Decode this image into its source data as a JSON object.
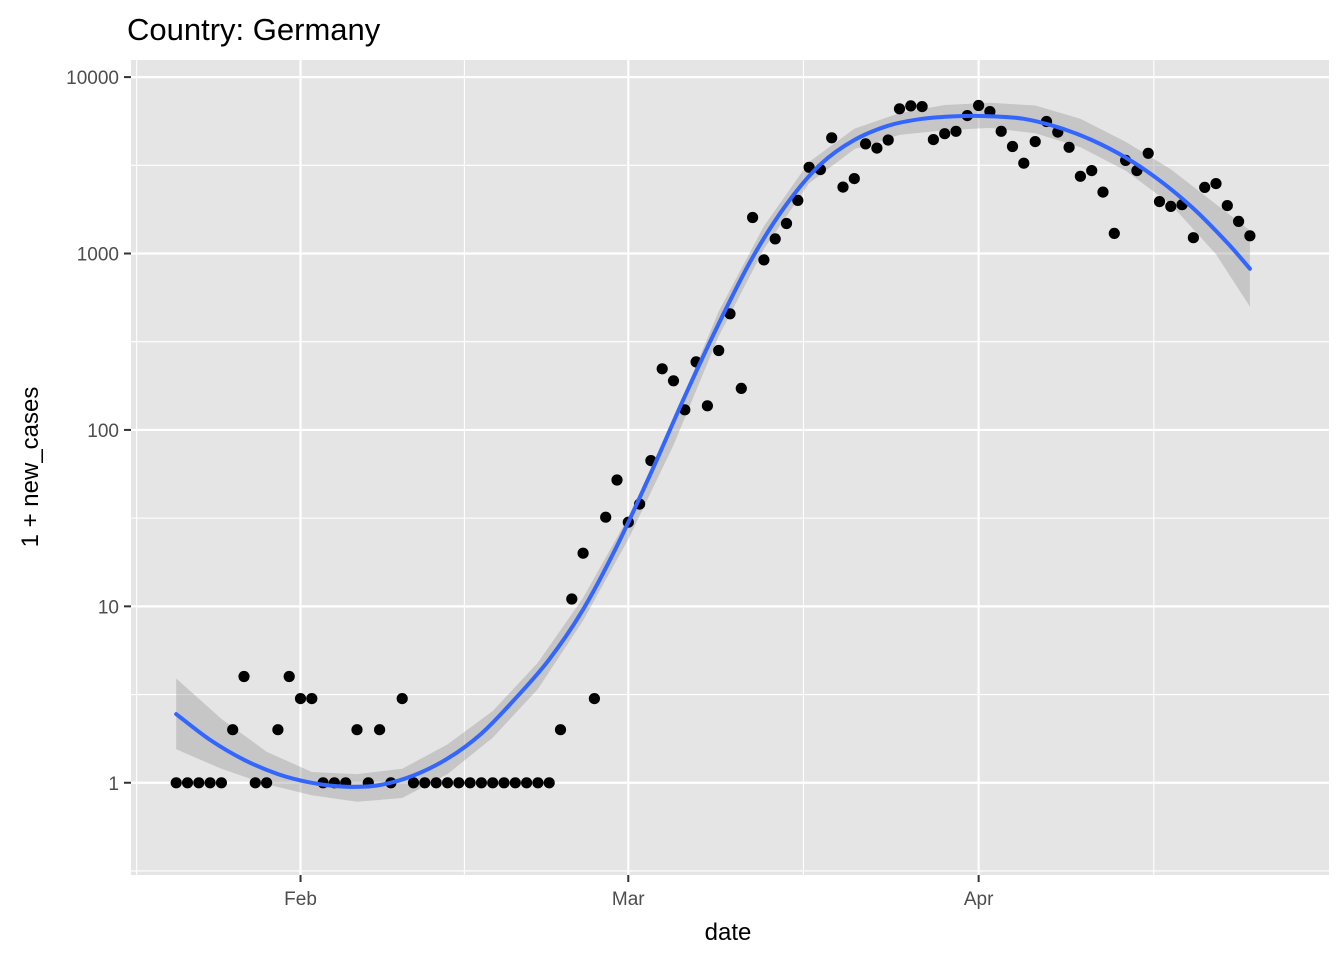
{
  "colors": {
    "panel": "#e5e5e5",
    "grid": "#ffffff",
    "points": "#000000",
    "trend": "#3366ff",
    "ribbon": "#999999"
  },
  "chart_data": {
    "type": "scatter",
    "title": "Country: Germany",
    "xlabel": "date",
    "ylabel": "1 + new_cases",
    "x_scale": "date",
    "y_scale": "log10",
    "xlim": [
      "2020-01-17",
      "2020-05-02"
    ],
    "ylim": [
      0.3,
      12500
    ],
    "x_ticks": [
      {
        "date": "2020-02-01",
        "label": "Feb"
      },
      {
        "date": "2020-03-01",
        "label": "Mar"
      },
      {
        "date": "2020-04-01",
        "label": "Apr"
      }
    ],
    "y_ticks": [
      {
        "value": 1,
        "label": "1"
      },
      {
        "value": 10,
        "label": "10"
      },
      {
        "value": 100,
        "label": "100"
      },
      {
        "value": 1000,
        "label": "1000"
      },
      {
        "value": 10000,
        "label": "10000"
      }
    ],
    "grid": true,
    "series": [
      {
        "kind": "points",
        "points": [
          [
            "2020-01-21",
            1
          ],
          [
            "2020-01-22",
            1
          ],
          [
            "2020-01-23",
            1
          ],
          [
            "2020-01-24",
            1
          ],
          [
            "2020-01-25",
            1
          ],
          [
            "2020-01-26",
            2
          ],
          [
            "2020-01-27",
            4
          ],
          [
            "2020-01-28",
            1
          ],
          [
            "2020-01-29",
            1
          ],
          [
            "2020-01-30",
            2
          ],
          [
            "2020-01-31",
            4
          ],
          [
            "2020-02-01",
            3
          ],
          [
            "2020-02-02",
            3
          ],
          [
            "2020-02-03",
            1
          ],
          [
            "2020-02-04",
            1
          ],
          [
            "2020-02-05",
            1
          ],
          [
            "2020-02-06",
            2
          ],
          [
            "2020-02-07",
            1
          ],
          [
            "2020-02-08",
            2
          ],
          [
            "2020-02-09",
            1
          ],
          [
            "2020-02-10",
            3
          ],
          [
            "2020-02-11",
            1
          ],
          [
            "2020-02-12",
            1
          ],
          [
            "2020-02-13",
            1
          ],
          [
            "2020-02-14",
            1
          ],
          [
            "2020-02-15",
            1
          ],
          [
            "2020-02-16",
            1
          ],
          [
            "2020-02-17",
            1
          ],
          [
            "2020-02-18",
            1
          ],
          [
            "2020-02-19",
            1
          ],
          [
            "2020-02-20",
            1
          ],
          [
            "2020-02-21",
            1
          ],
          [
            "2020-02-22",
            1
          ],
          [
            "2020-02-23",
            1
          ],
          [
            "2020-02-24",
            2
          ],
          [
            "2020-02-25",
            11
          ],
          [
            "2020-02-26",
            20
          ],
          [
            "2020-02-27",
            3
          ],
          [
            "2020-02-28",
            32
          ],
          [
            "2020-02-29",
            52
          ],
          [
            "2020-03-01",
            30
          ],
          [
            "2020-03-02",
            38
          ],
          [
            "2020-03-03",
            67
          ],
          [
            "2020-03-04",
            222
          ],
          [
            "2020-03-05",
            190
          ],
          [
            "2020-03-06",
            130
          ],
          [
            "2020-03-07",
            243
          ],
          [
            "2020-03-08",
            137
          ],
          [
            "2020-03-09",
            282
          ],
          [
            "2020-03-10",
            455
          ],
          [
            "2020-03-11",
            172
          ],
          [
            "2020-03-12",
            1600
          ],
          [
            "2020-03-13",
            920
          ],
          [
            "2020-03-14",
            1210
          ],
          [
            "2020-03-15",
            1480
          ],
          [
            "2020-03-16",
            2000
          ],
          [
            "2020-03-17",
            3080
          ],
          [
            "2020-03-18",
            2990
          ],
          [
            "2020-03-19",
            4530
          ],
          [
            "2020-03-20",
            2380
          ],
          [
            "2020-03-21",
            2660
          ],
          [
            "2020-03-22",
            4180
          ],
          [
            "2020-03-23",
            3960
          ],
          [
            "2020-03-24",
            4400
          ],
          [
            "2020-03-25",
            6610
          ],
          [
            "2020-03-26",
            6870
          ],
          [
            "2020-03-27",
            6800
          ],
          [
            "2020-03-28",
            4420
          ],
          [
            "2020-03-29",
            4780
          ],
          [
            "2020-03-30",
            4930
          ],
          [
            "2020-03-31",
            6050
          ],
          [
            "2020-04-01",
            6900
          ],
          [
            "2020-04-02",
            6370
          ],
          [
            "2020-04-03",
            4930
          ],
          [
            "2020-04-04",
            4040
          ],
          [
            "2020-04-05",
            3250
          ],
          [
            "2020-04-06",
            4310
          ],
          [
            "2020-04-07",
            5600
          ],
          [
            "2020-04-08",
            4880
          ],
          [
            "2020-04-09",
            4000
          ],
          [
            "2020-04-10",
            2740
          ],
          [
            "2020-04-11",
            2950
          ],
          [
            "2020-04-12",
            2230
          ],
          [
            "2020-04-13",
            1300
          ],
          [
            "2020-04-14",
            3370
          ],
          [
            "2020-04-15",
            2950
          ],
          [
            "2020-04-16",
            3700
          ],
          [
            "2020-04-17",
            1970
          ],
          [
            "2020-04-18",
            1850
          ],
          [
            "2020-04-19",
            1890
          ],
          [
            "2020-04-20",
            1230
          ],
          [
            "2020-04-21",
            2370
          ],
          [
            "2020-04-22",
            2490
          ],
          [
            "2020-04-23",
            1870
          ],
          [
            "2020-04-24",
            1520
          ],
          [
            "2020-04-25",
            1260
          ]
        ]
      },
      {
        "kind": "smooth",
        "points": [
          [
            "2020-01-21",
            2.45
          ],
          [
            "2020-01-24",
            1.75
          ],
          [
            "2020-01-27",
            1.35
          ],
          [
            "2020-01-30",
            1.12
          ],
          [
            "2020-02-02",
            1.0
          ],
          [
            "2020-02-05",
            0.95
          ],
          [
            "2020-02-08",
            0.97
          ],
          [
            "2020-02-11",
            1.1
          ],
          [
            "2020-02-14",
            1.37
          ],
          [
            "2020-02-17",
            1.9
          ],
          [
            "2020-02-20",
            3.0
          ],
          [
            "2020-02-23",
            5.0
          ],
          [
            "2020-02-26",
            9.6
          ],
          [
            "2020-02-29",
            22
          ],
          [
            "2020-03-03",
            57
          ],
          [
            "2020-03-06",
            155
          ],
          [
            "2020-03-09",
            400
          ],
          [
            "2020-03-12",
            950
          ],
          [
            "2020-03-15",
            1900
          ],
          [
            "2020-03-18",
            3200
          ],
          [
            "2020-03-21",
            4400
          ],
          [
            "2020-03-24",
            5300
          ],
          [
            "2020-03-27",
            5800
          ],
          [
            "2020-03-30",
            6000
          ],
          [
            "2020-04-02",
            6000
          ],
          [
            "2020-04-05",
            5800
          ],
          [
            "2020-04-08",
            5200
          ],
          [
            "2020-04-11",
            4400
          ],
          [
            "2020-04-14",
            3500
          ],
          [
            "2020-04-17",
            2600
          ],
          [
            "2020-04-20",
            1800
          ],
          [
            "2020-04-23",
            1150
          ],
          [
            "2020-04-25",
            820
          ]
        ]
      }
    ],
    "ribbon": [
      [
        "2020-01-21",
        1.55,
        3.9
      ],
      [
        "2020-01-25",
        1.2,
        2.3
      ],
      [
        "2020-01-29",
        0.98,
        1.5
      ],
      [
        "2020-02-02",
        0.85,
        1.15
      ],
      [
        "2020-02-06",
        0.78,
        1.12
      ],
      [
        "2020-02-10",
        0.82,
        1.2
      ],
      [
        "2020-02-14",
        1.12,
        1.65
      ],
      [
        "2020-02-18",
        1.8,
        2.55
      ],
      [
        "2020-02-22",
        3.4,
        4.8
      ],
      [
        "2020-02-26",
        8.3,
        11.2
      ],
      [
        "2020-03-01",
        24,
        32
      ],
      [
        "2020-03-05",
        82,
        115
      ],
      [
        "2020-03-09",
        340,
        470
      ],
      [
        "2020-03-13",
        1060,
        1430
      ],
      [
        "2020-03-17",
        2500,
        3300
      ],
      [
        "2020-03-21",
        3900,
        5100
      ],
      [
        "2020-03-25",
        4700,
        6250
      ],
      [
        "2020-03-29",
        5000,
        6950
      ],
      [
        "2020-04-02",
        5150,
        7150
      ],
      [
        "2020-04-06",
        4800,
        6900
      ],
      [
        "2020-04-10",
        4000,
        5800
      ],
      [
        "2020-04-14",
        2950,
        4300
      ],
      [
        "2020-04-18",
        1900,
        3000
      ],
      [
        "2020-04-22",
        990,
        1900
      ],
      [
        "2020-04-25",
        500,
        1350
      ]
    ]
  }
}
